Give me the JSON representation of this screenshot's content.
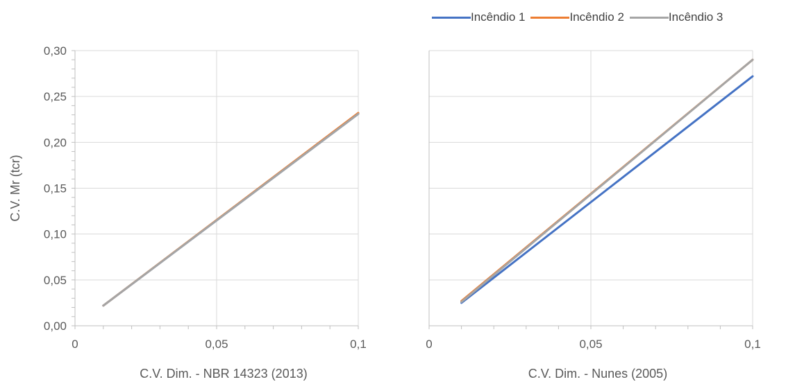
{
  "legend": [
    {
      "name": "Incêndio 1",
      "color": "#4472C4"
    },
    {
      "name": "Incêndio 2",
      "color": "#ED7D31"
    },
    {
      "name": "Incêndio 3",
      "color": "#A5A5A5"
    }
  ],
  "chart_data": [
    {
      "type": "line",
      "xlabel": "C.V. Dim. - NBR 14323 (2013)",
      "ylabel": "C.V. Mr (tcr)",
      "xlim": [
        0,
        0.1
      ],
      "ylim": [
        0,
        0.3
      ],
      "x_ticks": [
        "0",
        "0,05",
        "0,1"
      ],
      "y_ticks": [
        "0,00",
        "0,05",
        "0,10",
        "0,15",
        "0,20",
        "0,25",
        "0,30"
      ],
      "grid": true,
      "legend_position": "top-right",
      "series": [
        {
          "name": "Incêndio 1",
          "x": [
            0.01,
            0.1
          ],
          "y": [
            0.022,
            0.231
          ]
        },
        {
          "name": "Incêndio 2",
          "x": [
            0.01,
            0.1
          ],
          "y": [
            0.022,
            0.232
          ]
        },
        {
          "name": "Incêndio 3",
          "x": [
            0.01,
            0.1
          ],
          "y": [
            0.022,
            0.231
          ]
        }
      ]
    },
    {
      "type": "line",
      "xlabel": "C.V. Dim. - Nunes (2005)",
      "ylabel": "",
      "xlim": [
        0,
        0.1
      ],
      "ylim": [
        0,
        0.3
      ],
      "x_ticks": [
        "0",
        "0,05",
        "0,1"
      ],
      "y_ticks": [],
      "grid": true,
      "series": [
        {
          "name": "Incêndio 1",
          "x": [
            0.01,
            0.1
          ],
          "y": [
            0.025,
            0.272
          ]
        },
        {
          "name": "Incêndio 2",
          "x": [
            0.01,
            0.1
          ],
          "y": [
            0.027,
            0.29
          ]
        },
        {
          "name": "Incêndio 3",
          "x": [
            0.01,
            0.1
          ],
          "y": [
            0.026,
            0.29
          ]
        }
      ]
    }
  ]
}
